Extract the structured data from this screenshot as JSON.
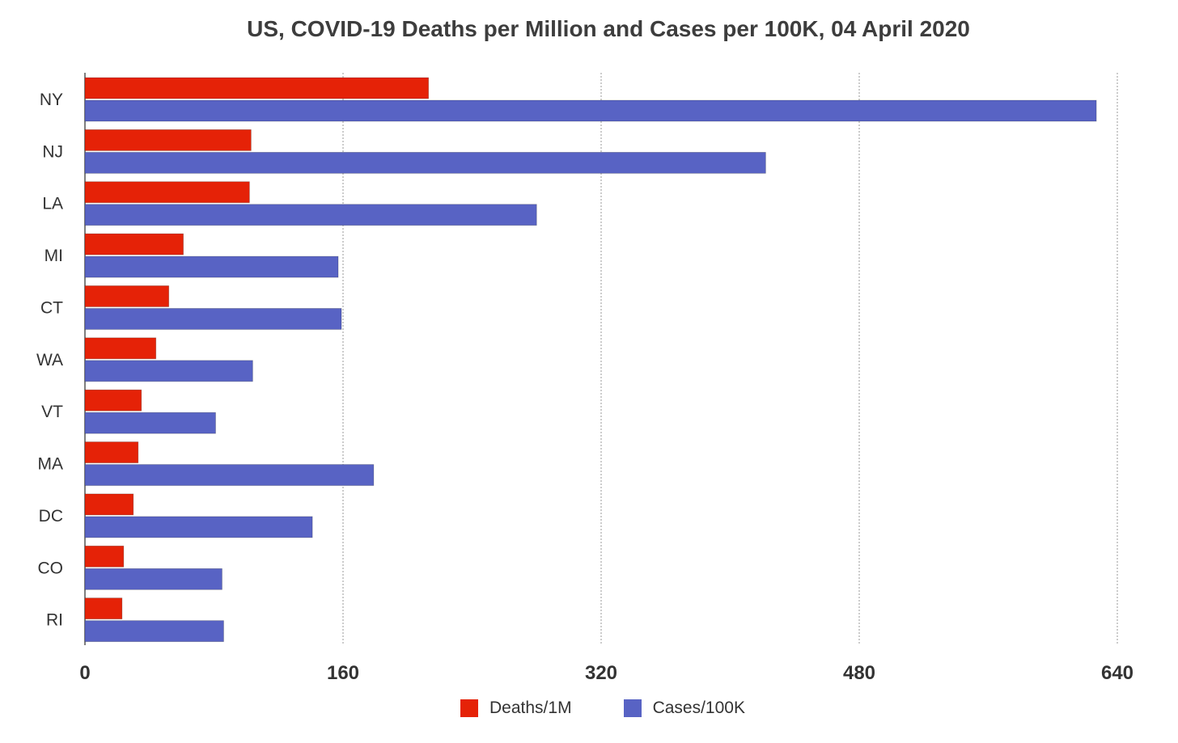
{
  "chart_data": {
    "type": "bar",
    "orientation": "horizontal",
    "title": "US, COVID-19 Deaths per Million and Cases per 100K, 04 April 2020",
    "categories": [
      "NY",
      "NJ",
      "LA",
      "MI",
      "CT",
      "WA",
      "VT",
      "MA",
      "DC",
      "CO",
      "RI"
    ],
    "series": [
      {
        "name": "Deaths/1M",
        "color": "#e52207",
        "values": [
          213,
          103,
          102,
          61,
          52,
          44,
          35,
          33,
          30,
          24,
          23
        ]
      },
      {
        "name": "Cases/100K",
        "color": "#5863c4",
        "values": [
          627,
          422,
          280,
          157,
          159,
          104,
          81,
          179,
          141,
          85,
          86
        ]
      }
    ],
    "xlim": [
      0,
      640
    ],
    "xticks": [
      "0",
      "160",
      "320",
      "480",
      "640"
    ],
    "grid": true,
    "legend": "bottom"
  }
}
